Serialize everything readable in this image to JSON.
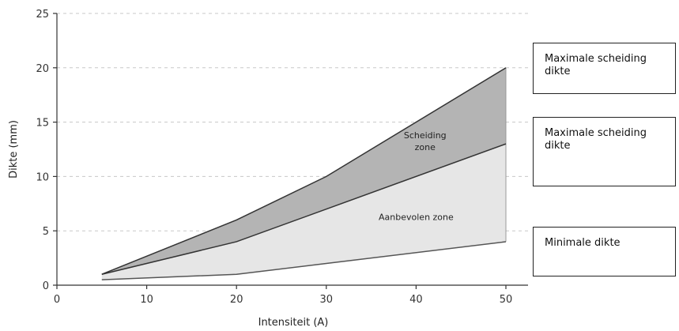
{
  "chart_data": {
    "type": "area",
    "xlabel": "Intensiteit (A)",
    "ylabel": "Dikte (mm)",
    "xlim": [
      0,
      50
    ],
    "ylim": [
      0,
      25
    ],
    "xticks": [
      0,
      10,
      20,
      30,
      40,
      50
    ],
    "yticks": [
      0,
      5,
      10,
      15,
      20,
      25
    ],
    "grid": "horizontal dashed",
    "series": [
      {
        "x": [
          5,
          20,
          30,
          50
        ],
        "values": [
          1,
          6,
          10,
          20
        ],
        "color": "#333333"
      },
      {
        "x": [
          5,
          20,
          30,
          50
        ],
        "values": [
          1,
          4,
          7,
          13
        ],
        "color": "#333333"
      },
      {
        "x": [
          5,
          20,
          30,
          50
        ],
        "values": [
          0.5,
          1,
          2,
          4
        ],
        "color": "#555555"
      }
    ],
    "zones": [
      {
        "label": "Scheiding zone",
        "upper_series": 0,
        "lower_series": 1,
        "fill": "#b4b4b4",
        "label_lines": [
          "Scheiding",
          "zone"
        ],
        "label_at": [
          41,
          13.5
        ]
      },
      {
        "label": "Aanbevolen zone",
        "upper_series": 1,
        "lower_series": 2,
        "fill": "#e6e6e6",
        "label_lines": [
          "Aanbevolen zone"
        ],
        "label_at": [
          40,
          6
        ]
      }
    ]
  },
  "callouts": [
    {
      "text": "Maximale scheiding dikte"
    },
    {
      "text": "Maximale scheiding dikte"
    },
    {
      "text": "Minimale dikte"
    }
  ]
}
